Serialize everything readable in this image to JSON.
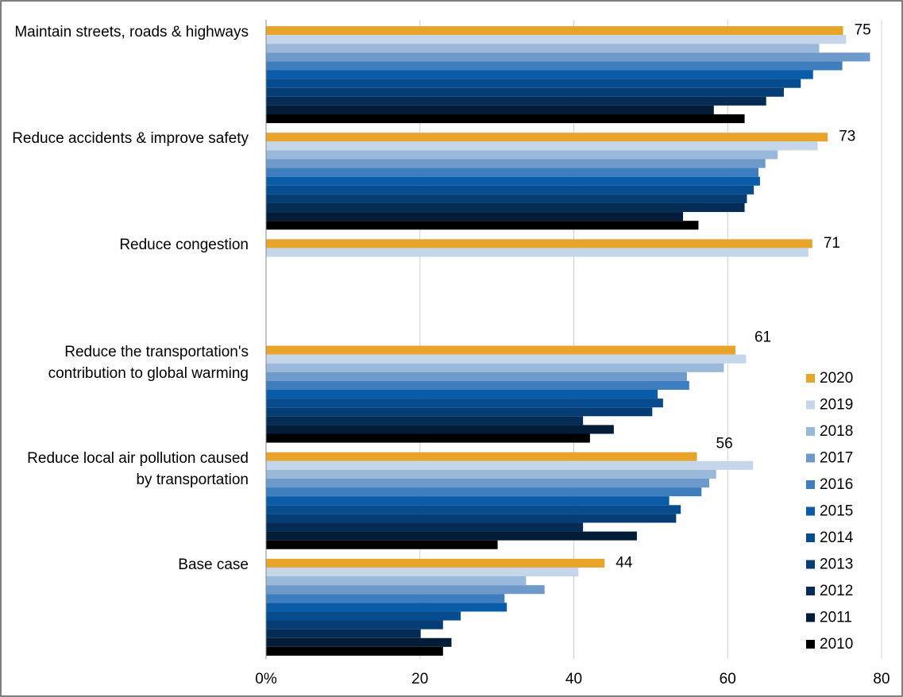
{
  "chart_data": {
    "type": "hbar",
    "categories": [
      "Maintain streets, roads & highways",
      "Reduce accidents & improve safety",
      "Reduce congestion",
      "Reduce the transportation's contribution to global warming",
      "Reduce local air pollution caused by transportation",
      "Base case"
    ],
    "series": [
      {
        "name": "2020",
        "color": "#E8A32A",
        "values": [
          75,
          73,
          71,
          61,
          56,
          44
        ]
      },
      {
        "name": "2019",
        "color": "#C6D6EA",
        "values": [
          75.4,
          71.7,
          70.5,
          62.4,
          63.3,
          40.6
        ]
      },
      {
        "name": "2018",
        "color": "#9AB8DA",
        "values": [
          71.9,
          66.5,
          null,
          59.5,
          58.5,
          33.8
        ]
      },
      {
        "name": "2017",
        "color": "#6E9ACB",
        "values": [
          78.5,
          64.9,
          null,
          54.7,
          57.6,
          36.2
        ]
      },
      {
        "name": "2016",
        "color": "#3F7EBE",
        "values": [
          74.9,
          64,
          null,
          55,
          56.6,
          31
        ]
      },
      {
        "name": "2015",
        "color": "#0A5CA8",
        "values": [
          71.1,
          64.2,
          null,
          50.9,
          52.4,
          31.3
        ]
      },
      {
        "name": "2014",
        "color": "#064C8F",
        "values": [
          69.5,
          63.4,
          null,
          51.6,
          53.9,
          25.3
        ]
      },
      {
        "name": "2013",
        "color": "#053D74",
        "values": [
          67.3,
          62.5,
          null,
          50.2,
          53.3,
          23
        ]
      },
      {
        "name": "2012",
        "color": "#042C55",
        "values": [
          65,
          62.2,
          null,
          41.2,
          41.2,
          20.1
        ]
      },
      {
        "name": "2011",
        "color": "#031C38",
        "values": [
          58.2,
          54.2,
          null,
          45.2,
          48.2,
          24.1
        ]
      },
      {
        "name": "2010",
        "color": "#000000",
        "values": [
          62.2,
          56.2,
          null,
          42.1,
          30.1,
          23
        ]
      }
    ],
    "xlim": [
      0,
      80
    ],
    "xticks": [
      {
        "value": 0,
        "label": "0%"
      },
      20,
      40,
      60,
      80
    ],
    "grid": true
  }
}
